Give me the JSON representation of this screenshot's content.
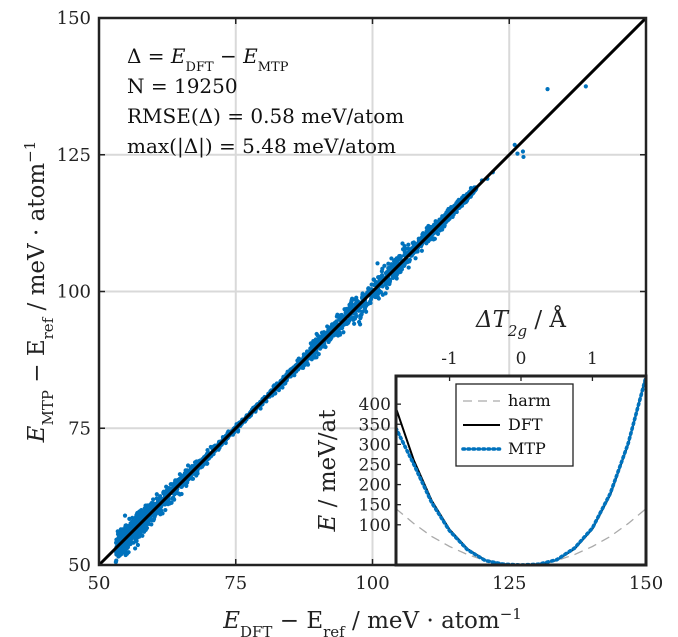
{
  "chart_data": [
    {
      "type": "scatter",
      "title": "",
      "xlabel": {
        "main": "E",
        "sub": "DFT",
        "rest": " − E",
        "sub2": "ref",
        "unit": " / meV · atom",
        "exp": "−1"
      },
      "ylabel": {
        "main": "E",
        "sub": "MTP",
        "rest": " − E",
        "sub2": "ref",
        "unit": " / meV · atom",
        "exp": "−1"
      },
      "xlim": [
        50,
        150
      ],
      "ylim": [
        50,
        150
      ],
      "xticks": [
        50,
        75,
        100,
        125,
        150
      ],
      "yticks": [
        50,
        75,
        100,
        125,
        150
      ],
      "grid": true,
      "point_color": "#0072BD",
      "reference_line": {
        "x": [
          50,
          150
        ],
        "y": [
          50,
          150
        ],
        "color": "#000000"
      },
      "cloud": {
        "x_range": [
          54,
          118
        ],
        "spread": 1.2,
        "n_drawn": 2400
      },
      "points": [
        {
          "x": 54,
          "y": 54.3
        },
        {
          "x": 56,
          "y": 55.8
        },
        {
          "x": 58.5,
          "y": 58.4
        },
        {
          "x": 60,
          "y": 60.6
        },
        {
          "x": 61,
          "y": 61.2
        },
        {
          "x": 118,
          "y": 118.9
        },
        {
          "x": 120,
          "y": 120.3
        },
        {
          "x": 121,
          "y": 120.6
        },
        {
          "x": 122,
          "y": 121.8
        },
        {
          "x": 126,
          "y": 126.8
        },
        {
          "x": 126.5,
          "y": 125.2
        },
        {
          "x": 127.6,
          "y": 124.6
        },
        {
          "x": 127.5,
          "y": 125.6
        },
        {
          "x": 132,
          "y": 137.0
        },
        {
          "x": 139,
          "y": 137.5
        }
      ],
      "annotations": [
        {
          "parts": [
            [
              "Δ = ",
              ""
            ],
            [
              "E",
              "it"
            ],
            [
              "DFT",
              "sub"
            ],
            [
              " − ",
              ""
            ],
            [
              "E",
              "it"
            ],
            [
              "MTP",
              "sub"
            ]
          ]
        },
        {
          "parts": [
            [
              "N = 19250",
              ""
            ]
          ]
        },
        {
          "parts": [
            [
              "RMSE(Δ) = 0.58 meV/atom",
              ""
            ]
          ]
        },
        {
          "parts": [
            [
              "max(|Δ|)   = 5.48 meV/atom",
              ""
            ]
          ]
        }
      ]
    },
    {
      "type": "line",
      "title": {
        "main": "ΔT",
        "sub": "2g",
        "unit": " / Å"
      },
      "xlim": [
        -1.75,
        1.75
      ],
      "ylim": [
        0,
        470
      ],
      "xticks": [
        -1,
        0,
        1
      ],
      "yticks": [
        100,
        150,
        200,
        250,
        300,
        350,
        400
      ],
      "ylabel": {
        "main": "E",
        "unit": " / meV/at"
      },
      "legend_position": "top",
      "series": [
        {
          "name": "harm",
          "color": "#aaaaaa",
          "style": "dashed",
          "x": [
            -1.75,
            -1.5,
            -1.25,
            -1,
            -0.75,
            -0.5,
            -0.25,
            0,
            0.25,
            0.5,
            0.75,
            1,
            1.25,
            1.5,
            1.75
          ],
          "y": [
            140,
            103,
            71,
            46,
            26,
            11,
            3,
            0,
            3,
            11,
            26,
            46,
            71,
            103,
            140
          ]
        },
        {
          "name": "DFT",
          "color": "#000000",
          "style": "solid",
          "x": [
            -1.75,
            -1.5,
            -1.25,
            -1,
            -0.75,
            -0.5,
            -0.25,
            0,
            0.25,
            0.5,
            0.75,
            1,
            1.25,
            1.5,
            1.75
          ],
          "y": [
            390,
            260,
            160,
            88,
            40,
            12,
            2,
            0,
            2,
            12,
            40,
            90,
            175,
            300,
            470
          ]
        },
        {
          "name": "MTP",
          "color": "#0072BD",
          "style": "dotted",
          "x": [
            -1.75,
            -1.5,
            -1.25,
            -1,
            -0.75,
            -0.5,
            -0.25,
            0,
            0.25,
            0.5,
            0.75,
            1,
            1.25,
            1.5,
            1.75
          ],
          "y": [
            340,
            250,
            155,
            85,
            38,
            11,
            2,
            0,
            2,
            13,
            42,
            92,
            178,
            302,
            468
          ]
        }
      ]
    }
  ]
}
